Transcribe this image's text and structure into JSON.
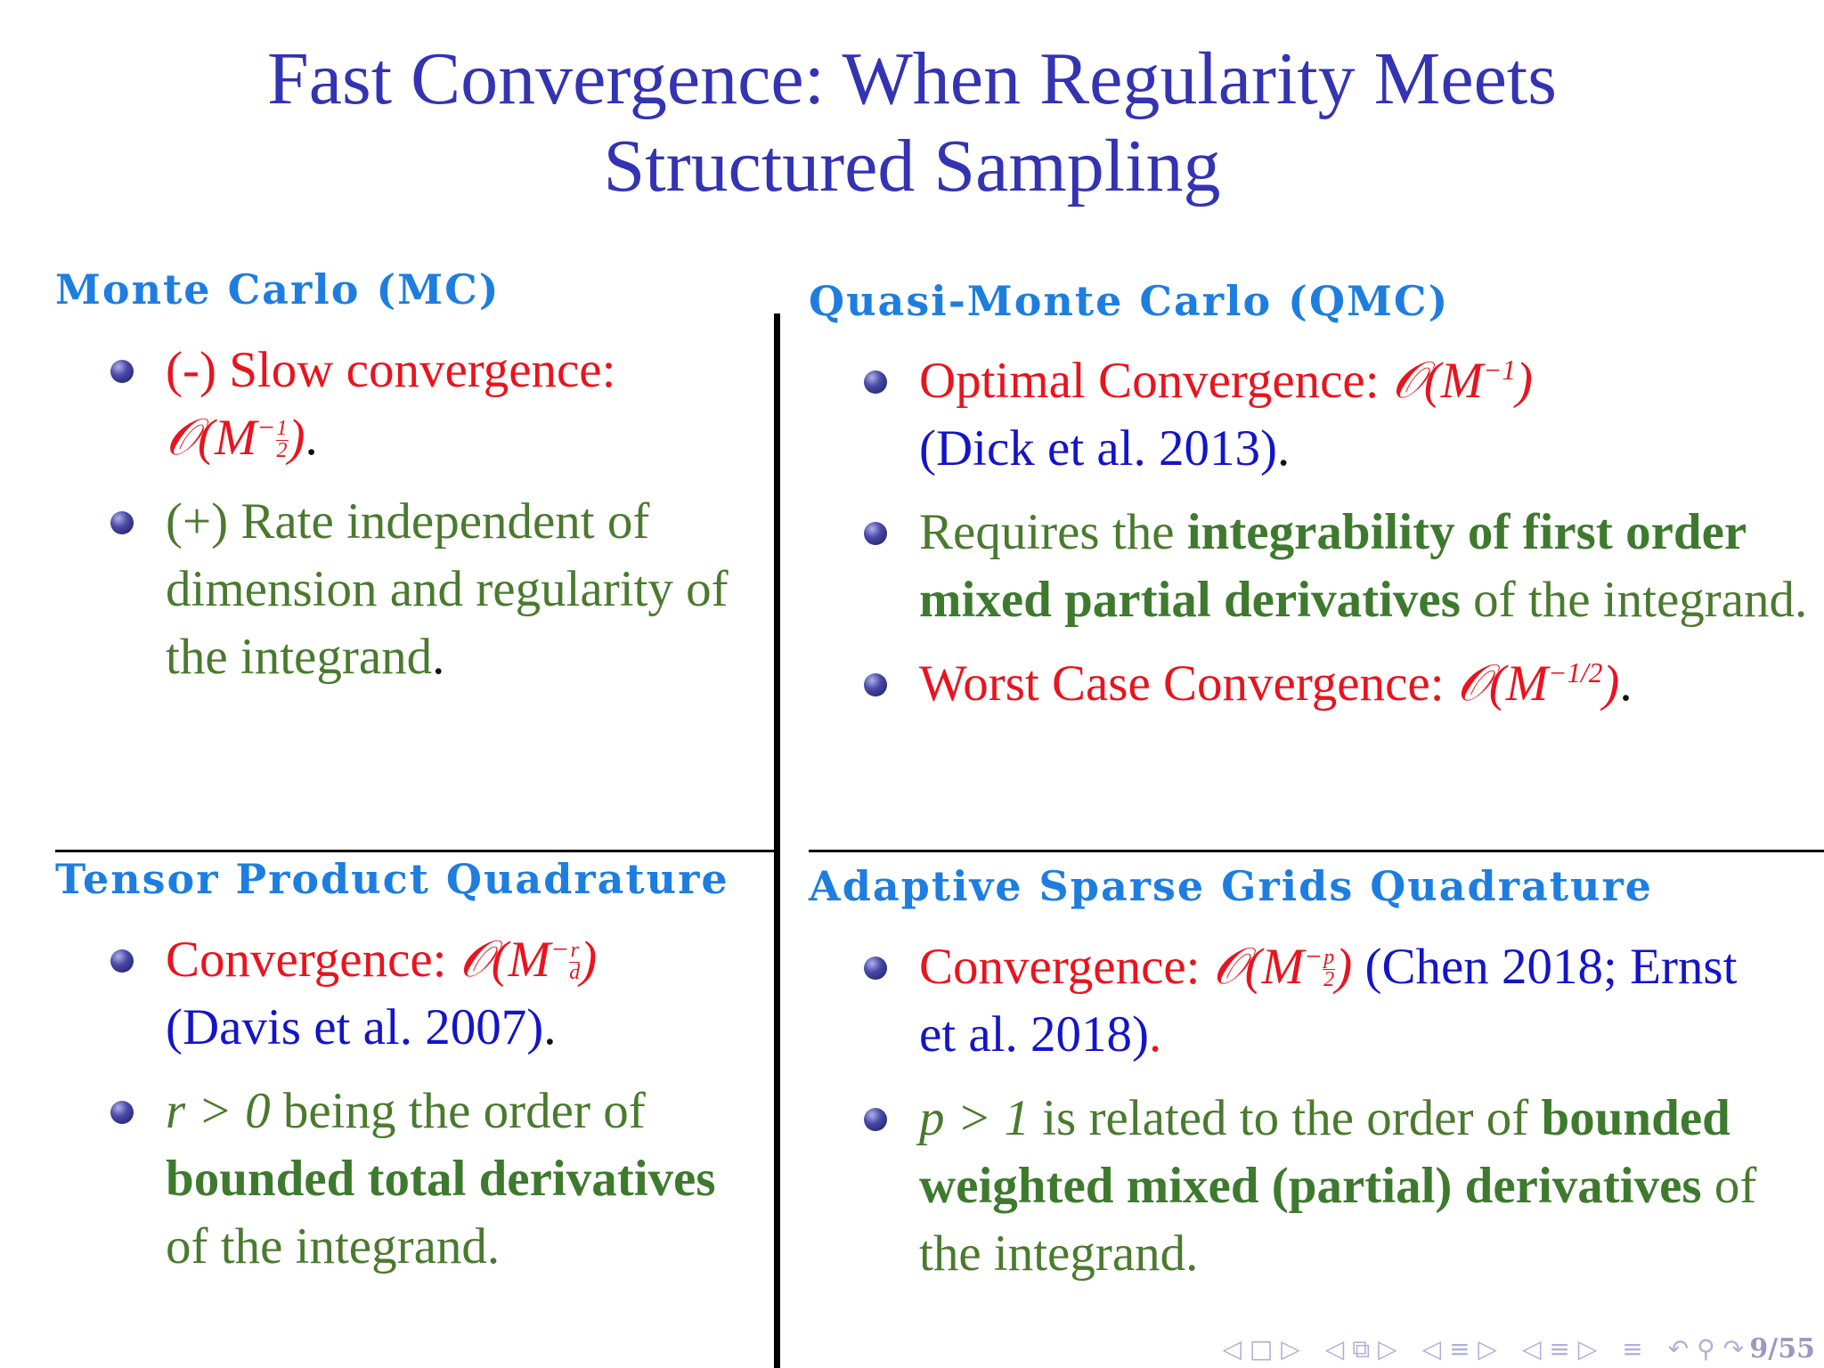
{
  "slide": {
    "title_line1": "Fast Convergence: When Regularity Meets",
    "title_line2": "Structured Sampling",
    "page_number": "9/55"
  },
  "mc": {
    "heading": "Monte Carlo (MC)",
    "b1_text": "(-) Slow convergence:",
    "b1_rate_prefix": "𝒪(M",
    "b1_exp_sign": "−",
    "b1_exp_num": "1",
    "b1_exp_den": "2",
    "b1_close": ")",
    "b1_end": ".",
    "b2_text": "(+) Rate independent of dimension and regularity of the integrand",
    "b2_end": "."
  },
  "qmc": {
    "heading": "Quasi-Monte Carlo (QMC)",
    "b1_text": "Optimal Convergence:",
    "b1_rate": "𝒪(M",
    "b1_exp": "−1",
    "b1_close": ")",
    "b1_cite": "(Dick et al. 2013)",
    "b1_end": ".",
    "b2_pre": "Requires the",
    "b2_bold": "integrability of first order mixed partial derivatives",
    "b2_post": "of the integrand.",
    "b3_text": "Worst Case Convergence:",
    "b3_rate": "𝒪(M",
    "b3_exp": "−1/2",
    "b3_close": ")",
    "b3_end": "."
  },
  "tensor": {
    "heading": "Tensor Product Quadrature",
    "b1_text": "Convergence:",
    "b1_rate": "𝒪(M",
    "b1_exp_sign": "−",
    "b1_exp_num": "r",
    "b1_exp_den": "d",
    "b1_close": ")",
    "b1_cite": "(Davis et al. 2007)",
    "b1_end": ".",
    "b2_math": "r > 0",
    "b2_pre": "being the order of",
    "b2_bold": "bounded total derivatives",
    "b2_post": "of the integrand."
  },
  "sparse": {
    "heading": "Adaptive Sparse Grids Quadrature",
    "b1_text": "Convergence:",
    "b1_rate": "𝒪(M",
    "b1_exp_sign": "−",
    "b1_exp_num": "p",
    "b1_exp_den": "2",
    "b1_close": ")",
    "b1_cite": "(Chen 2018; Ernst et al. 2018)",
    "b1_end": ".",
    "b2_math": "p > 1",
    "b2_pre": "is related to the order of",
    "b2_bold": "bounded weighted mixed (partial) derivatives",
    "b2_post": "of the integrand."
  },
  "nav": {
    "first": "◁ □ ▷",
    "prev": "◁ ⧉ ▷",
    "section": "◁ ≡ ▷",
    "subsection": "◁ ≡ ▷",
    "list": "≡",
    "search": "↶ ⚲ ↷"
  }
}
